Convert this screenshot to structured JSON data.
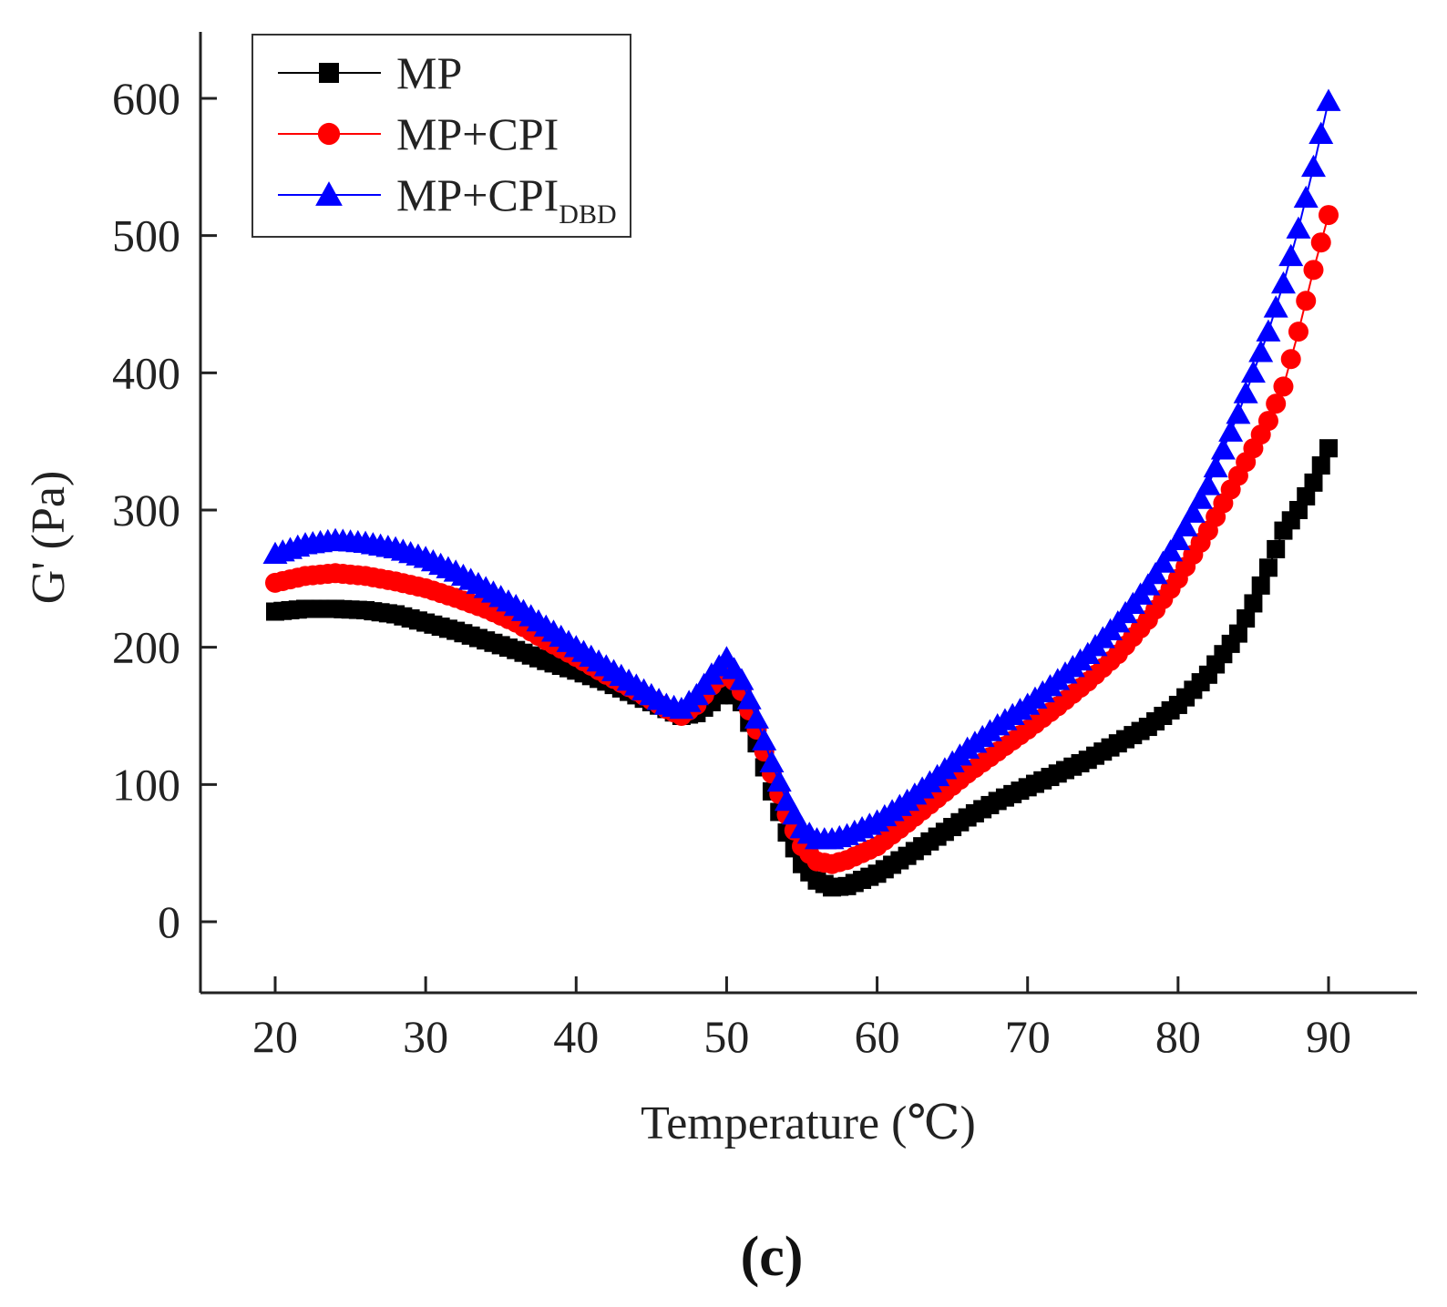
{
  "chart_data": {
    "type": "scatter",
    "title": "",
    "xlabel": "Temperature (℃)",
    "ylabel": "G' (Pa)",
    "xlim": [
      15,
      97
    ],
    "ylim": [
      -50,
      650
    ],
    "x_ticks": [
      20,
      30,
      40,
      50,
      60,
      70,
      80,
      90
    ],
    "y_ticks": [
      0,
      100,
      200,
      300,
      400,
      500,
      600
    ],
    "grid": false,
    "legend_position": "top-left",
    "panel_label": "(c)",
    "series": [
      {
        "name": "MP",
        "name_main": "MP",
        "name_sub": "",
        "color": "#000000",
        "marker": "square",
        "x": [
          20,
          22,
          24,
          26,
          28,
          30,
          32,
          34,
          36,
          38,
          40,
          42,
          44,
          46,
          47,
          48,
          49,
          50,
          51,
          52,
          53,
          54,
          55,
          56,
          57,
          58,
          60,
          62,
          64,
          66,
          68,
          70,
          72,
          74,
          76,
          78,
          80,
          82,
          84,
          85,
          86,
          87,
          88,
          89,
          90
        ],
        "y": [
          226,
          228,
          228,
          227,
          224,
          218,
          212,
          205,
          198,
          190,
          183,
          175,
          165,
          155,
          150,
          152,
          160,
          170,
          160,
          130,
          95,
          65,
          42,
          30,
          25,
          26,
          35,
          48,
          62,
          76,
          88,
          98,
          108,
          118,
          130,
          142,
          158,
          180,
          210,
          232,
          258,
          285,
          300,
          320,
          345
        ]
      },
      {
        "name": "MP+CPI",
        "name_main": "MP+CPI",
        "name_sub": "",
        "color": "#ff0000",
        "marker": "circle",
        "x": [
          20,
          22,
          24,
          26,
          28,
          30,
          32,
          34,
          36,
          38,
          40,
          42,
          44,
          46,
          47,
          48,
          49,
          50,
          51,
          52,
          53,
          54,
          55,
          56,
          57,
          58,
          60,
          62,
          64,
          66,
          68,
          70,
          72,
          74,
          76,
          78,
          80,
          82,
          84,
          85,
          86,
          87,
          88,
          89,
          90
        ],
        "y": [
          247,
          252,
          254,
          252,
          248,
          243,
          236,
          228,
          218,
          205,
          193,
          180,
          168,
          155,
          150,
          158,
          172,
          183,
          168,
          140,
          108,
          78,
          55,
          44,
          42,
          45,
          55,
          72,
          90,
          108,
          124,
          140,
          157,
          175,
          195,
          220,
          250,
          285,
          325,
          345,
          365,
          390,
          430,
          475,
          515
        ]
      },
      {
        "name": "MP+CPI DBD",
        "name_main": "MP+CPI",
        "name_sub": "DBD",
        "color": "#0000ff",
        "marker": "triangle",
        "x": [
          20,
          22,
          24,
          26,
          28,
          30,
          32,
          34,
          36,
          38,
          40,
          42,
          44,
          46,
          47,
          48,
          49,
          50,
          51,
          52,
          53,
          54,
          55,
          56,
          57,
          58,
          60,
          62,
          64,
          66,
          68,
          70,
          72,
          74,
          76,
          78,
          80,
          82,
          84,
          85,
          86,
          87,
          88,
          89,
          90
        ],
        "y": [
          268,
          275,
          278,
          276,
          272,
          265,
          255,
          243,
          230,
          215,
          200,
          186,
          172,
          158,
          155,
          165,
          180,
          192,
          176,
          148,
          116,
          88,
          68,
          60,
          60,
          63,
          73,
          88,
          106,
          126,
          143,
          158,
          176,
          195,
          218,
          245,
          278,
          318,
          370,
          400,
          430,
          465,
          505,
          550,
          598
        ]
      }
    ]
  }
}
